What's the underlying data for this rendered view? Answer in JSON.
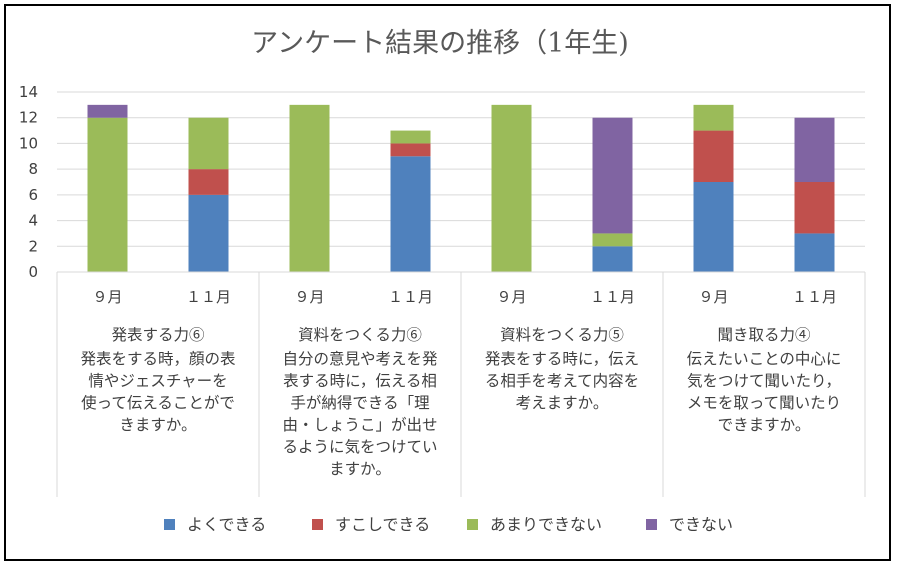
{
  "chart_data": {
    "type": "bar",
    "stacked": true,
    "title": "アンケート結果の推移（1年生)",
    "ylim": [
      0,
      14
    ],
    "yticks": [
      "0",
      "2",
      "4",
      "6",
      "8",
      "10",
      "12",
      "14"
    ],
    "grid": true,
    "legend_position": "bottom",
    "groups": [
      {
        "name": "発表する力⑥",
        "description": [
          "発表をする時，顔の表",
          "情やジェスチャーを",
          "使って伝えることがで",
          "きますか。"
        ],
        "categories": [
          "９月",
          "１１月"
        ]
      },
      {
        "name": "資料をつくる力⑥",
        "description": [
          "自分の意見や考えを発",
          "表する時に，伝える相",
          "手が納得できる「理",
          "由・しょうこ」が出せ",
          "るように気をつけてい",
          "ますか。"
        ],
        "categories": [
          "９月",
          "１１月"
        ]
      },
      {
        "name": "資料をつくる力⑤",
        "description": [
          "発表をする時に，伝え",
          "る相手を考えて内容を",
          "考えますか。"
        ],
        "categories": [
          "９月",
          "１１月"
        ]
      },
      {
        "name": "聞き取る力④",
        "description": [
          "伝えたいことの中心に",
          "気をつけて聞いたり，",
          "メモを取って聞いたり",
          "できますか。"
        ],
        "categories": [
          "９月",
          "１１月"
        ]
      }
    ],
    "series": [
      {
        "name": "よくできる",
        "color": "#4f81bd",
        "values": [
          0,
          6,
          0,
          9,
          0,
          2,
          7,
          3
        ]
      },
      {
        "name": "すこしできる",
        "color": "#c0504d",
        "values": [
          0,
          2,
          0,
          1,
          0,
          0,
          4,
          4
        ]
      },
      {
        "name": "あまりできない",
        "color": "#9bbb59",
        "values": [
          12,
          4,
          13,
          1,
          13,
          1,
          2,
          0
        ]
      },
      {
        "name": "できない",
        "color": "#8064a2",
        "values": [
          1,
          0,
          0,
          0,
          0,
          9,
          0,
          5
        ]
      }
    ]
  }
}
